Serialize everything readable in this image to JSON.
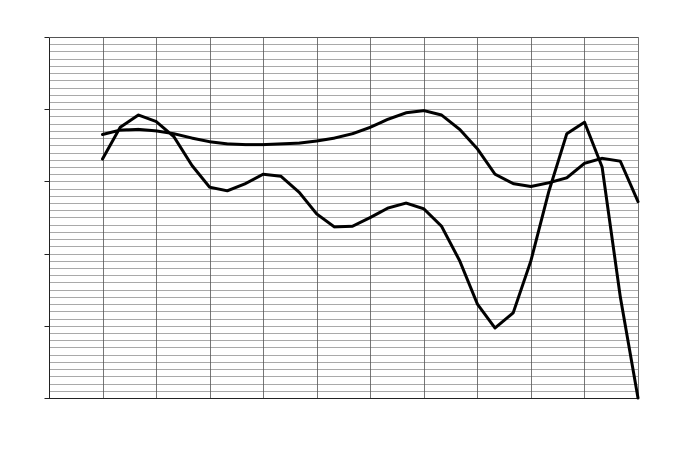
{
  "chart_data": {
    "type": "line",
    "title": "",
    "xlabel": "",
    "ylabel": "",
    "x": [
      1,
      1.33,
      1.67,
      2,
      2.33,
      2.67,
      3,
      3.33,
      3.67,
      4,
      4.33,
      4.67,
      5,
      5.33,
      5.67,
      6,
      6.33,
      6.67,
      7,
      7.33,
      7.67,
      8,
      8.33,
      8.67,
      9,
      9.33,
      9.67,
      10,
      10.33,
      10.67,
      11
    ],
    "xlim": [
      0,
      11
    ],
    "ylim": [
      0,
      5
    ],
    "grid": true,
    "series": [
      {
        "values": [
          3.65,
          3.71,
          3.72,
          3.7,
          3.66,
          3.6,
          3.55,
          3.52,
          3.51,
          3.51,
          3.52,
          3.53,
          3.56,
          3.6,
          3.66,
          3.75,
          3.86,
          3.95,
          3.98,
          3.92,
          3.72,
          3.45,
          3.1,
          2.97,
          2.93,
          2.98,
          3.05,
          3.25,
          3.32,
          3.28,
          2.72
        ],
        "color": "#000000"
      },
      {
        "values": [
          3.31,
          3.75,
          3.92,
          3.83,
          3.62,
          3.22,
          2.92,
          2.87,
          2.97,
          3.1,
          3.07,
          2.85,
          2.55,
          2.37,
          2.38,
          2.5,
          2.63,
          2.7,
          2.62,
          2.38,
          1.9,
          1.3,
          0.97,
          1.18,
          1.9,
          2.85,
          3.66,
          3.82,
          3.2,
          1.4,
          0.0
        ],
        "color": "#000000"
      }
    ]
  }
}
